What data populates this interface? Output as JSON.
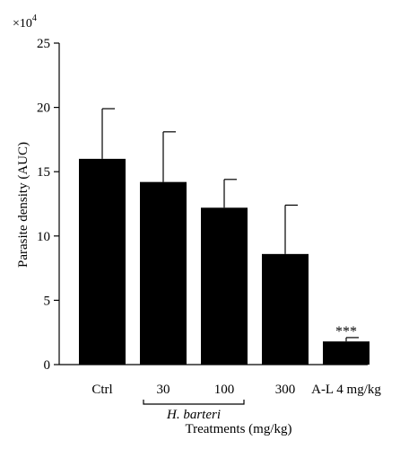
{
  "chart_data": {
    "type": "bar",
    "categories": [
      "Ctrl",
      "30",
      "100",
      "300",
      "A-L 4 mg/kg"
    ],
    "values": [
      16.0,
      14.2,
      12.2,
      8.6,
      1.8
    ],
    "errors": [
      3.9,
      3.9,
      2.2,
      3.8,
      0.3
    ],
    "annotations": [
      "",
      "",
      "",
      "",
      "***"
    ],
    "group": {
      "label": "H. barteri",
      "from": 1,
      "to": 2
    },
    "ylim": [
      0,
      25
    ],
    "yticks": [
      0,
      5,
      10,
      15,
      20,
      25
    ],
    "ylabel": "Parasite density (AUC)",
    "xlabel": "Treatments (mg/kg)",
    "scale_prefix": "×10",
    "scale_exponent": "4",
    "bar_color": "#000000",
    "grid": false,
    "legend": "none"
  }
}
